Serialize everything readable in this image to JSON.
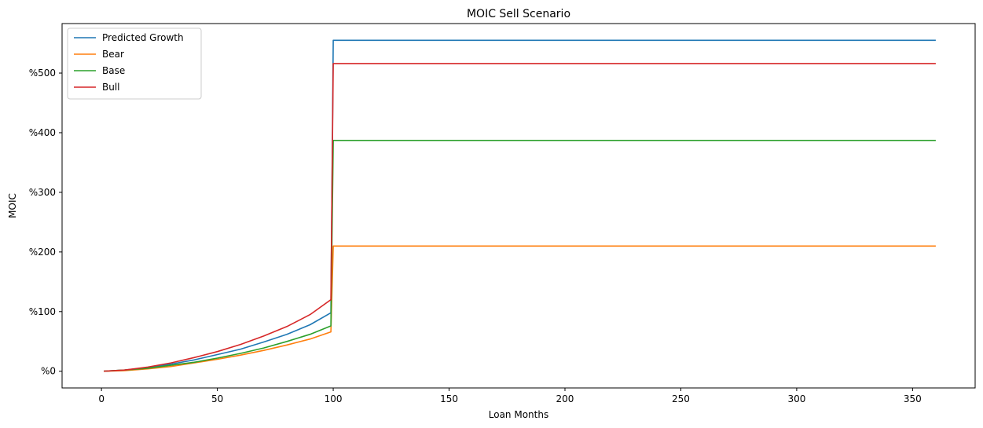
{
  "chart_data": {
    "type": "line",
    "title": "MOIC Sell Scenario",
    "xlabel": "Loan Months",
    "ylabel": "MOIC",
    "xlim": [
      -17,
      377
    ],
    "ylim": [
      -0.28,
      5.83
    ],
    "xticks": [
      0,
      50,
      100,
      150,
      200,
      250,
      300,
      350
    ],
    "yticks": [
      0,
      1,
      2,
      3,
      4,
      5
    ],
    "ytick_labels": [
      "%0",
      "%100",
      "%200",
      "%300",
      "%400",
      "%500"
    ],
    "grid": false,
    "legend": "top-left",
    "series": [
      {
        "name": "Predicted Growth",
        "color": "#1f77b4",
        "points": [
          [
            1,
            0
          ],
          [
            10,
            0.02
          ],
          [
            20,
            0.06
          ],
          [
            30,
            0.12
          ],
          [
            40,
            0.19
          ],
          [
            50,
            0.28
          ],
          [
            60,
            0.37
          ],
          [
            70,
            0.49
          ],
          [
            80,
            0.62
          ],
          [
            90,
            0.78
          ],
          [
            99,
            0.98
          ],
          [
            100,
            5.55
          ],
          [
            360,
            5.55
          ]
        ]
      },
      {
        "name": "Bear",
        "color": "#ff7f0e",
        "points": [
          [
            1,
            0
          ],
          [
            10,
            0.01
          ],
          [
            20,
            0.04
          ],
          [
            30,
            0.08
          ],
          [
            40,
            0.14
          ],
          [
            50,
            0.2
          ],
          [
            60,
            0.27
          ],
          [
            70,
            0.35
          ],
          [
            80,
            0.44
          ],
          [
            90,
            0.54
          ],
          [
            99,
            0.66
          ],
          [
            100,
            2.1
          ],
          [
            360,
            2.1
          ]
        ]
      },
      {
        "name": "Base",
        "color": "#2ca02c",
        "points": [
          [
            1,
            0
          ],
          [
            10,
            0.02
          ],
          [
            20,
            0.05
          ],
          [
            30,
            0.1
          ],
          [
            40,
            0.15
          ],
          [
            50,
            0.22
          ],
          [
            60,
            0.3
          ],
          [
            70,
            0.39
          ],
          [
            80,
            0.5
          ],
          [
            90,
            0.62
          ],
          [
            99,
            0.76
          ],
          [
            100,
            3.87
          ],
          [
            360,
            3.87
          ]
        ]
      },
      {
        "name": "Bull",
        "color": "#d62728",
        "points": [
          [
            1,
            0
          ],
          [
            10,
            0.02
          ],
          [
            20,
            0.07
          ],
          [
            30,
            0.14
          ],
          [
            40,
            0.23
          ],
          [
            50,
            0.33
          ],
          [
            60,
            0.45
          ],
          [
            70,
            0.59
          ],
          [
            80,
            0.75
          ],
          [
            90,
            0.95
          ],
          [
            99,
            1.2
          ],
          [
            100,
            5.16
          ],
          [
            360,
            5.16
          ]
        ]
      }
    ]
  }
}
